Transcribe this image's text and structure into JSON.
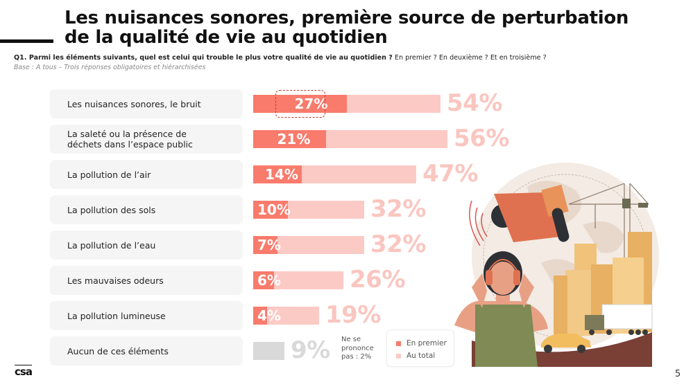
{
  "header": {
    "title_line1": "Les nuisances sonores, première source de perturbation",
    "title_line2": "de la qualité de vie au quotidien",
    "question_bold": "Q1. Parmi les éléments suivants, quel est celui qui trouble le plus votre qualité de vie au quotidien ?",
    "question_rest": " En premier ? En deuxième ? Et en troisième ?",
    "base": "Base : A tous – Trois réponses obligatoires et hiérarchisées"
  },
  "chart_data": {
    "type": "bar",
    "orientation": "horizontal",
    "title": "Les nuisances sonores, première source de perturbation de la qualité de vie au quotidien",
    "categories": [
      "Les nuisances sonores, le bruit",
      "La saleté ou la présence de déchets dans l’espace public",
      "La pollution de l’air",
      "La pollution des sols",
      "La pollution de l’eau",
      "Les mauvaises odeurs",
      "La pollution lumineuse",
      "Aucun de ces éléments"
    ],
    "category_lines": [
      [
        "Les nuisances sonores, le bruit"
      ],
      [
        "La saleté ou la présence de",
        "déchets dans l’espace public"
      ],
      [
        "La pollution de l’air"
      ],
      [
        "La pollution des sols"
      ],
      [
        "La pollution de l’eau"
      ],
      [
        "Les mauvaises odeurs"
      ],
      [
        "La pollution lumineuse"
      ],
      [
        "Aucun de ces éléments"
      ]
    ],
    "series": [
      {
        "name": "En premier",
        "color": "#f97b6c",
        "values": [
          27,
          21,
          14,
          10,
          7,
          6,
          4,
          null
        ]
      },
      {
        "name": "Au total",
        "color": "#fccac5",
        "values": [
          54,
          56,
          47,
          32,
          32,
          26,
          19,
          9
        ]
      }
    ],
    "none_color": "#d9d9d9",
    "unit": "%",
    "highlighted": {
      "category_index": 0,
      "series": "En premier"
    },
    "legend_position": "bottom-right",
    "xlim": [
      0,
      100
    ],
    "grid": false,
    "note": "Ne se prononce pas : 2%"
  },
  "note_lines": [
    "Ne se",
    "prononce",
    "pas : 2%"
  ],
  "legend": [
    {
      "label": "En premier",
      "color": "#f97b6c"
    },
    {
      "label": "Au total",
      "color": "#fccac5"
    }
  ],
  "footer": {
    "logo": "csa",
    "page_number": "5"
  },
  "illustration": {
    "description": "woman-with-headphones-megaphone-city-construction"
  }
}
